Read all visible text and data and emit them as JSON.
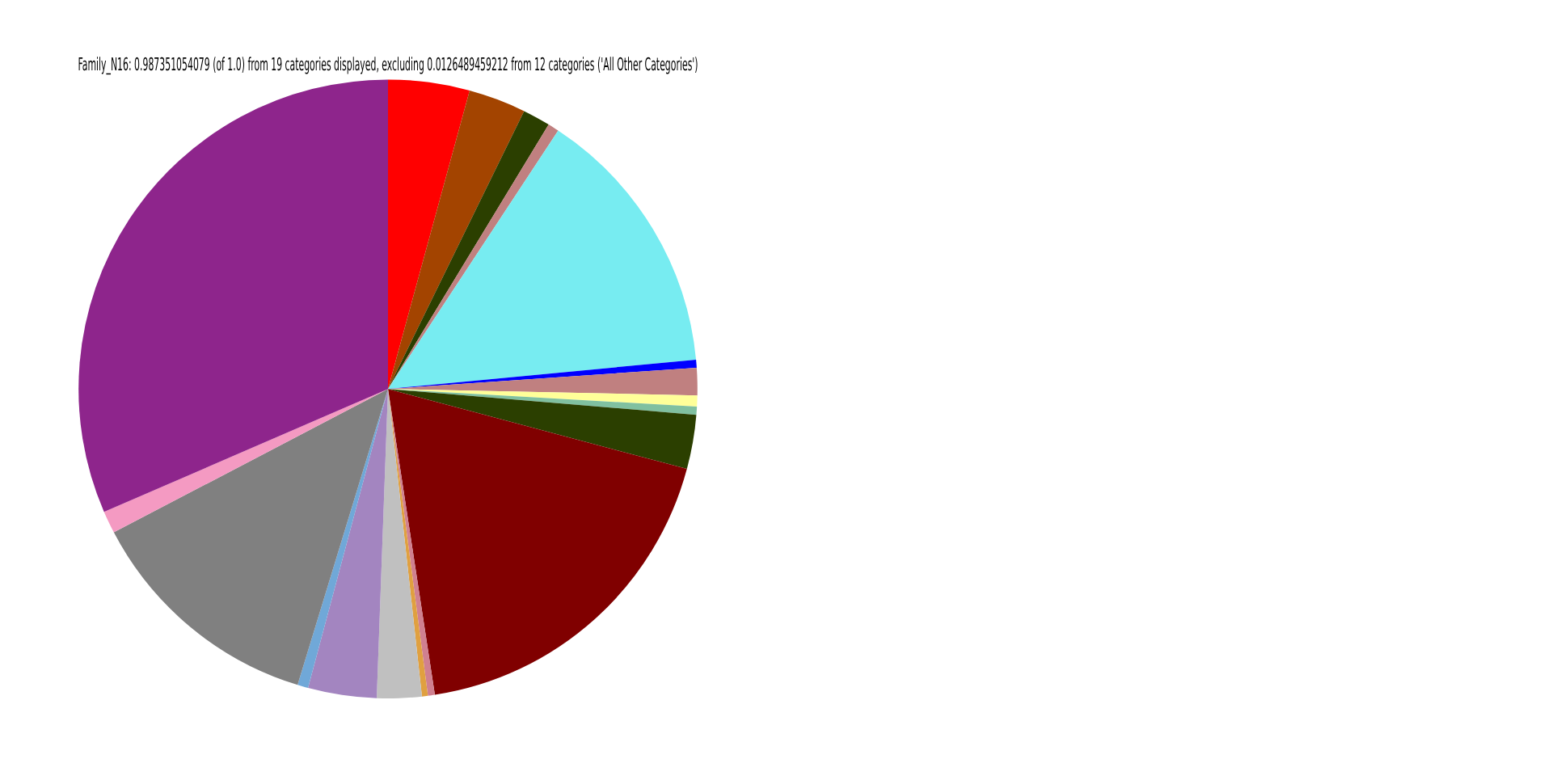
{
  "chart_data": {
    "type": "pie",
    "title": "Family_N16: 0.987351054079 (of 1.0) from 19 categories displayed, excluding 0.0126489459212 from 12 categories ('All Other Categories')",
    "categories": [
      null,
      null,
      null,
      null,
      null,
      null,
      null,
      null,
      null,
      null,
      null,
      null,
      null,
      null,
      null,
      null,
      null,
      null,
      null
    ],
    "values": [
      4.25,
      3.0,
      1.44,
      0.58,
      14.22,
      0.42,
      1.42,
      0.58,
      0.42,
      2.83,
      18.42,
      0.36,
      0.31,
      2.33,
      3.58,
      0.56,
      12.61,
      1.17,
      31.5
    ],
    "colors": [
      "#ff0000",
      "#a34400",
      "#2b3f00",
      "#c08080",
      "#77ecf1",
      "#0000ff",
      "#c08080",
      "#ffff99",
      "#80c0a0",
      "#2b3f00",
      "#800000",
      "#d08090",
      "#e0a040",
      "#c0c0c0",
      "#a385c0",
      "#70a8d8",
      "#808080",
      "#f49ac2",
      "#8e258c"
    ],
    "legend": false
  }
}
